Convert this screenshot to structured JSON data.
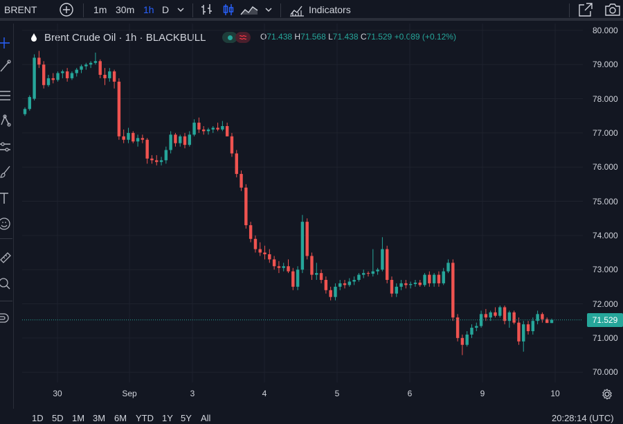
{
  "toolbar": {
    "symbol": "BRENT",
    "intervals": [
      "1m",
      "30m",
      "1h",
      "D"
    ],
    "active_interval": "1h",
    "indicators_label": "Indicators"
  },
  "legend": {
    "title": "Brent Crude Oil · 1h · BLACKBULL",
    "open_label": "O",
    "open": "71.438",
    "high_label": "H",
    "high": "71.568",
    "low_label": "L",
    "low": "71.438",
    "close_label": "C",
    "close": "71.529",
    "change": "+0.089 (+0.12%)"
  },
  "price_scale": {
    "ticks": [
      "80.000",
      "79.000",
      "78.000",
      "77.000",
      "76.000",
      "75.000",
      "74.000",
      "73.000",
      "72.000",
      "71.000",
      "70.000"
    ],
    "last_price": "71.529"
  },
  "time_axis": {
    "ticks": [
      "30",
      "Sep",
      "3",
      "4",
      "5",
      "6",
      "9",
      "10"
    ]
  },
  "range_bar": {
    "ranges": [
      "1D",
      "5D",
      "1M",
      "3M",
      "6M",
      "YTD",
      "1Y",
      "5Y",
      "All"
    ],
    "clock": "20:28:14 (UTC)"
  },
  "colors": {
    "up": "#26a69a",
    "down": "#ef5350",
    "background": "#131722",
    "accent": "#2962ff"
  },
  "chart_data": {
    "type": "candlestick",
    "title": "Brent Crude Oil · 1h · BLACKBULL",
    "ylim": [
      69.7,
      80.2
    ],
    "x_ticks": [
      "30",
      "Sep",
      "3",
      "4",
      "5",
      "6",
      "9",
      "10"
    ],
    "last_price": 71.529,
    "candles": [
      [
        77.55,
        77.75,
        77.5,
        77.7
      ],
      [
        77.7,
        78.1,
        77.65,
        78.05
      ],
      [
        78.0,
        79.3,
        77.95,
        79.2
      ],
      [
        79.2,
        79.4,
        78.9,
        79.0
      ],
      [
        79.0,
        79.1,
        78.3,
        78.4
      ],
      [
        78.4,
        78.7,
        78.35,
        78.6
      ],
      [
        78.6,
        78.75,
        78.45,
        78.55
      ],
      [
        78.55,
        78.8,
        78.5,
        78.75
      ],
      [
        78.75,
        78.85,
        78.6,
        78.8
      ],
      [
        78.8,
        78.9,
        78.5,
        78.6
      ],
      [
        78.6,
        78.8,
        78.55,
        78.75
      ],
      [
        78.75,
        78.9,
        78.65,
        78.85
      ],
      [
        78.85,
        79.0,
        78.75,
        78.95
      ],
      [
        78.95,
        79.05,
        78.85,
        79.0
      ],
      [
        79.0,
        79.1,
        78.9,
        79.05
      ],
      [
        79.05,
        79.35,
        79.0,
        79.1
      ],
      [
        79.1,
        79.15,
        78.6,
        78.7
      ],
      [
        78.7,
        78.9,
        78.4,
        78.6
      ],
      [
        78.6,
        78.9,
        78.5,
        78.8
      ],
      [
        78.8,
        78.85,
        78.3,
        78.5
      ],
      [
        78.5,
        78.6,
        76.8,
        76.9
      ],
      [
        76.9,
        77.1,
        76.7,
        76.8
      ],
      [
        76.8,
        77.15,
        76.7,
        77.0
      ],
      [
        77.0,
        77.05,
        76.7,
        76.75
      ],
      [
        76.75,
        76.95,
        76.6,
        76.85
      ],
      [
        76.85,
        76.95,
        76.7,
        76.8
      ],
      [
        76.8,
        76.85,
        76.1,
        76.25
      ],
      [
        76.25,
        76.35,
        76.1,
        76.2
      ],
      [
        76.2,
        76.35,
        76.05,
        76.15
      ],
      [
        76.15,
        76.3,
        76.05,
        76.2
      ],
      [
        76.2,
        76.6,
        76.1,
        76.5
      ],
      [
        76.5,
        77.05,
        76.4,
        76.95
      ],
      [
        76.95,
        77.0,
        76.6,
        76.7
      ],
      [
        76.7,
        76.95,
        76.6,
        76.9
      ],
      [
        76.9,
        77.0,
        76.55,
        76.65
      ],
      [
        76.65,
        77.05,
        76.6,
        76.95
      ],
      [
        76.95,
        77.4,
        76.9,
        77.3
      ],
      [
        77.3,
        77.45,
        77.0,
        77.1
      ],
      [
        77.1,
        77.2,
        76.95,
        77.05
      ],
      [
        77.05,
        77.15,
        76.95,
        77.1
      ],
      [
        77.1,
        77.2,
        77.0,
        77.15
      ],
      [
        77.15,
        77.3,
        77.05,
        77.1
      ],
      [
        77.1,
        77.35,
        77.05,
        77.2
      ],
      [
        77.2,
        77.3,
        76.9,
        76.9
      ],
      [
        76.9,
        77.0,
        76.3,
        76.4
      ],
      [
        76.4,
        76.5,
        75.7,
        75.8
      ],
      [
        75.8,
        75.9,
        75.3,
        75.4
      ],
      [
        75.4,
        75.5,
        74.2,
        74.3
      ],
      [
        74.3,
        74.4,
        73.8,
        73.9
      ],
      [
        73.9,
        74.0,
        73.5,
        73.6
      ],
      [
        73.6,
        73.8,
        73.4,
        73.5
      ],
      [
        73.5,
        73.7,
        73.3,
        73.45
      ],
      [
        73.45,
        73.6,
        73.2,
        73.3
      ],
      [
        73.3,
        73.4,
        73.0,
        73.1
      ],
      [
        73.1,
        73.25,
        72.9,
        73.05
      ],
      [
        73.05,
        73.2,
        72.95,
        73.1
      ],
      [
        73.1,
        73.3,
        72.9,
        72.95
      ],
      [
        72.95,
        73.05,
        72.4,
        72.5
      ],
      [
        72.5,
        73.1,
        72.4,
        73.0
      ],
      [
        73.0,
        74.6,
        72.9,
        74.4
      ],
      [
        74.4,
        74.5,
        73.3,
        73.4
      ],
      [
        73.4,
        73.5,
        72.7,
        72.85
      ],
      [
        72.85,
        73.2,
        72.7,
        72.9
      ],
      [
        72.9,
        73.0,
        72.6,
        72.7
      ],
      [
        72.7,
        72.8,
        72.3,
        72.4
      ],
      [
        72.4,
        72.5,
        72.1,
        72.2
      ],
      [
        72.2,
        72.6,
        72.1,
        72.5
      ],
      [
        72.5,
        72.7,
        72.4,
        72.6
      ],
      [
        72.6,
        72.7,
        72.45,
        72.55
      ],
      [
        72.55,
        72.75,
        72.5,
        72.65
      ],
      [
        72.65,
        72.8,
        72.55,
        72.7
      ],
      [
        72.7,
        72.9,
        72.65,
        72.85
      ],
      [
        72.85,
        73.0,
        72.75,
        72.9
      ],
      [
        72.9,
        72.95,
        72.8,
        72.88
      ],
      [
        72.88,
        73.6,
        72.8,
        72.95
      ],
      [
        72.95,
        73.05,
        72.85,
        73.0
      ],
      [
        73.0,
        73.95,
        72.95,
        73.6
      ],
      [
        73.6,
        73.7,
        72.6,
        72.7
      ],
      [
        72.7,
        72.8,
        72.2,
        72.3
      ],
      [
        72.3,
        72.6,
        72.2,
        72.5
      ],
      [
        72.5,
        72.7,
        72.4,
        72.6
      ],
      [
        72.6,
        72.7,
        72.45,
        72.55
      ],
      [
        72.55,
        72.65,
        72.45,
        72.58
      ],
      [
        72.58,
        72.7,
        72.5,
        72.62
      ],
      [
        72.62,
        72.7,
        72.5,
        72.55
      ],
      [
        72.55,
        72.9,
        72.5,
        72.85
      ],
      [
        72.85,
        72.95,
        72.5,
        72.6
      ],
      [
        72.6,
        72.9,
        72.5,
        72.85
      ],
      [
        72.85,
        72.95,
        72.5,
        72.6
      ],
      [
        72.6,
        73.05,
        72.55,
        72.95
      ],
      [
        72.95,
        73.3,
        72.9,
        73.2
      ],
      [
        73.2,
        73.3,
        71.5,
        71.6
      ],
      [
        71.6,
        71.7,
        70.9,
        71.0
      ],
      [
        71.0,
        71.1,
        70.5,
        70.8
      ],
      [
        70.8,
        71.2,
        70.75,
        71.1
      ],
      [
        71.1,
        71.4,
        71.0,
        71.3
      ],
      [
        71.3,
        71.45,
        71.2,
        71.35
      ],
      [
        71.35,
        71.8,
        71.3,
        71.7
      ],
      [
        71.7,
        71.85,
        71.5,
        71.6
      ],
      [
        71.6,
        71.8,
        71.5,
        71.75
      ],
      [
        71.75,
        71.9,
        71.6,
        71.65
      ],
      [
        71.65,
        71.95,
        71.6,
        71.9
      ],
      [
        71.9,
        71.95,
        71.4,
        71.5
      ],
      [
        71.5,
        71.8,
        71.3,
        71.75
      ],
      [
        71.75,
        71.8,
        71.4,
        71.45
      ],
      [
        71.45,
        71.6,
        70.8,
        70.9
      ],
      [
        70.9,
        71.5,
        70.6,
        71.4
      ],
      [
        71.4,
        71.5,
        71.1,
        71.2
      ],
      [
        71.2,
        71.6,
        71.1,
        71.5
      ],
      [
        71.5,
        71.8,
        71.4,
        71.7
      ],
      [
        71.7,
        71.75,
        71.45,
        71.55
      ],
      [
        71.55,
        71.6,
        71.44,
        71.44
      ],
      [
        71.438,
        71.568,
        71.438,
        71.529
      ]
    ]
  }
}
